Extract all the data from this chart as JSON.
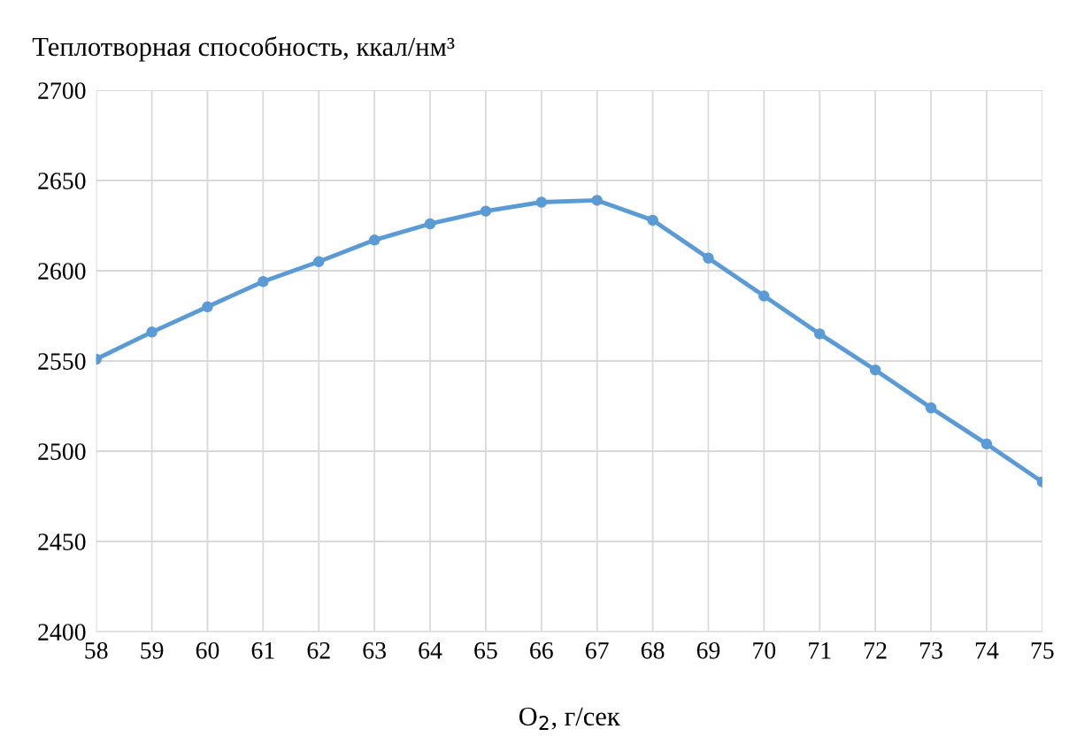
{
  "chart_data": {
    "type": "line",
    "ylabel": "Теплотворная способность, ккал/нм³",
    "xlabel": "O$_{2}$, г/сек",
    "x": [
      58,
      59,
      60,
      61,
      62,
      63,
      64,
      65,
      66,
      67,
      68,
      69,
      70,
      71,
      72,
      73,
      74,
      75
    ],
    "series": [
      {
        "color": "#5b9bd5",
        "values": [
          2551,
          2566,
          2580,
          2594,
          2605,
          2617,
          2626,
          2633,
          2638,
          2639,
          2628,
          2607,
          2586,
          2565,
          2545,
          2524,
          2504,
          2483
        ]
      }
    ],
    "xlim": [
      58,
      75
    ],
    "xticks": [
      58,
      59,
      60,
      61,
      62,
      63,
      64,
      65,
      66,
      67,
      68,
      69,
      70,
      71,
      72,
      73,
      74,
      75
    ],
    "ylim": [
      2400,
      2700
    ],
    "yticks": [
      2400,
      2450,
      2500,
      2550,
      2600,
      2650,
      2700
    ],
    "grid": true,
    "marker": "circle",
    "line_style": "solid"
  }
}
